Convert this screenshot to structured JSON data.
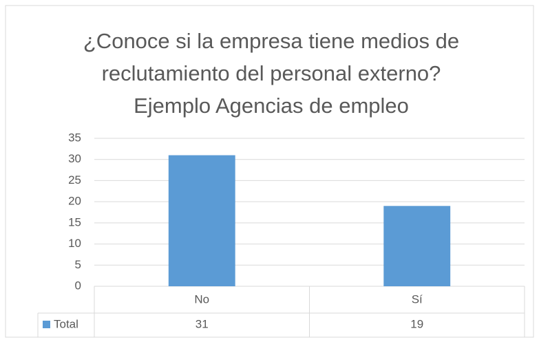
{
  "chart_data": {
    "type": "bar",
    "title": [
      "¿Conoce si la empresa tiene medios de",
      "reclutamiento del personal externo?",
      "Ejemplo Agencias de empleo"
    ],
    "categories": [
      "No",
      "Sí"
    ],
    "series": [
      {
        "name": "Total",
        "color": "#5b9bd5",
        "values": [
          31,
          19
        ]
      }
    ],
    "ylim": [
      0,
      35
    ],
    "yticks": [
      0,
      5,
      10,
      15,
      20,
      25,
      30,
      35
    ],
    "grid": true,
    "data_table": true
  }
}
